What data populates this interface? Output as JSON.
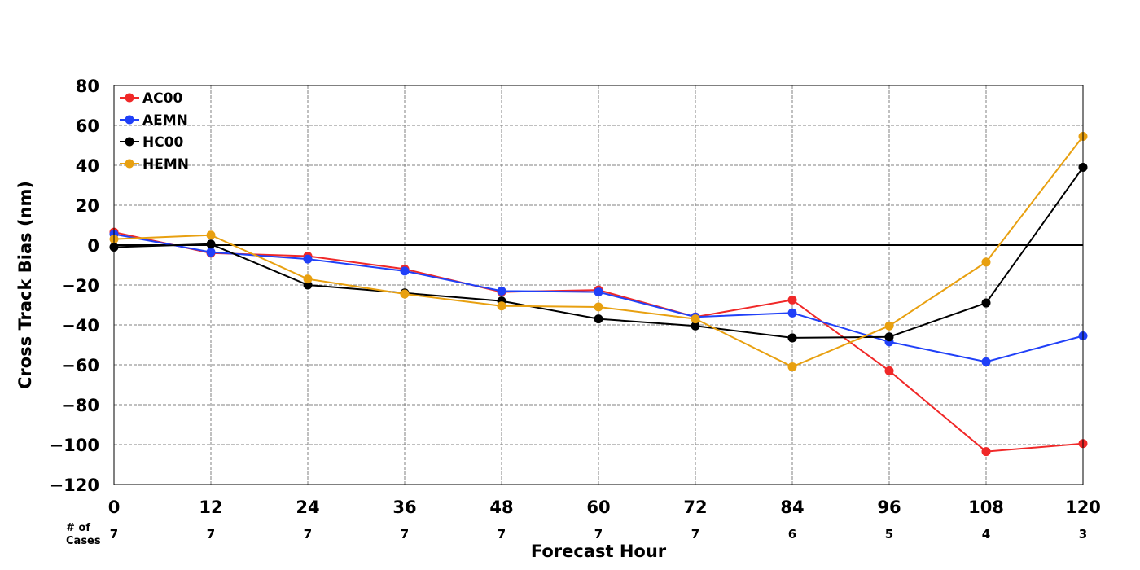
{
  "chart_data": {
    "type": "line",
    "xlabel": "Forecast Hour",
    "ylabel": "Cross Track Bias (nm)",
    "x": [
      0,
      12,
      24,
      36,
      48,
      60,
      72,
      84,
      96,
      108,
      120
    ],
    "xlim": [
      0,
      120
    ],
    "ylim": [
      -120,
      80
    ],
    "yticks": [
      80,
      60,
      40,
      20,
      0,
      -20,
      -40,
      -60,
      -80,
      -100,
      -120
    ],
    "ytick_labels": [
      "80",
      "60",
      "40",
      "20",
      "0",
      "−20",
      "−40",
      "−60",
      "−80",
      "−100",
      "−120"
    ],
    "xtick_labels": [
      "0",
      "12",
      "24",
      "36",
      "48",
      "60",
      "72",
      "84",
      "96",
      "108",
      "120"
    ],
    "grid": true,
    "zero_line": true,
    "legend_position": "top-left",
    "cases_label_line1": "# of",
    "cases_label_line2": "Cases",
    "cases": [
      "7",
      "7",
      "7",
      "7",
      "7",
      "7",
      "7",
      "6",
      "5",
      "4",
      "3"
    ],
    "series": [
      {
        "name": "AC00",
        "color": "#f02828",
        "values": [
          6.5,
          -4,
          -5.5,
          -12,
          -23.5,
          -22.5,
          -36,
          -27.5,
          -63,
          -103.5,
          -99.5
        ]
      },
      {
        "name": "AEMN",
        "color": "#2040f8",
        "values": [
          5.5,
          -3.5,
          -7,
          -13,
          -23,
          -23.5,
          -36,
          -34,
          -48.5,
          -58.5,
          -45.5
        ]
      },
      {
        "name": "HC00",
        "color": "#000000",
        "values": [
          -1,
          0.5,
          -20,
          -24,
          -28,
          -37,
          -40.5,
          -46.5,
          -46,
          -29,
          39
        ]
      },
      {
        "name": "HEMN",
        "color": "#e8a010",
        "values": [
          3,
          5,
          -17,
          -24.5,
          -30.5,
          -31,
          -37,
          -61,
          -40.5,
          -8.5,
          54.5
        ]
      }
    ]
  }
}
